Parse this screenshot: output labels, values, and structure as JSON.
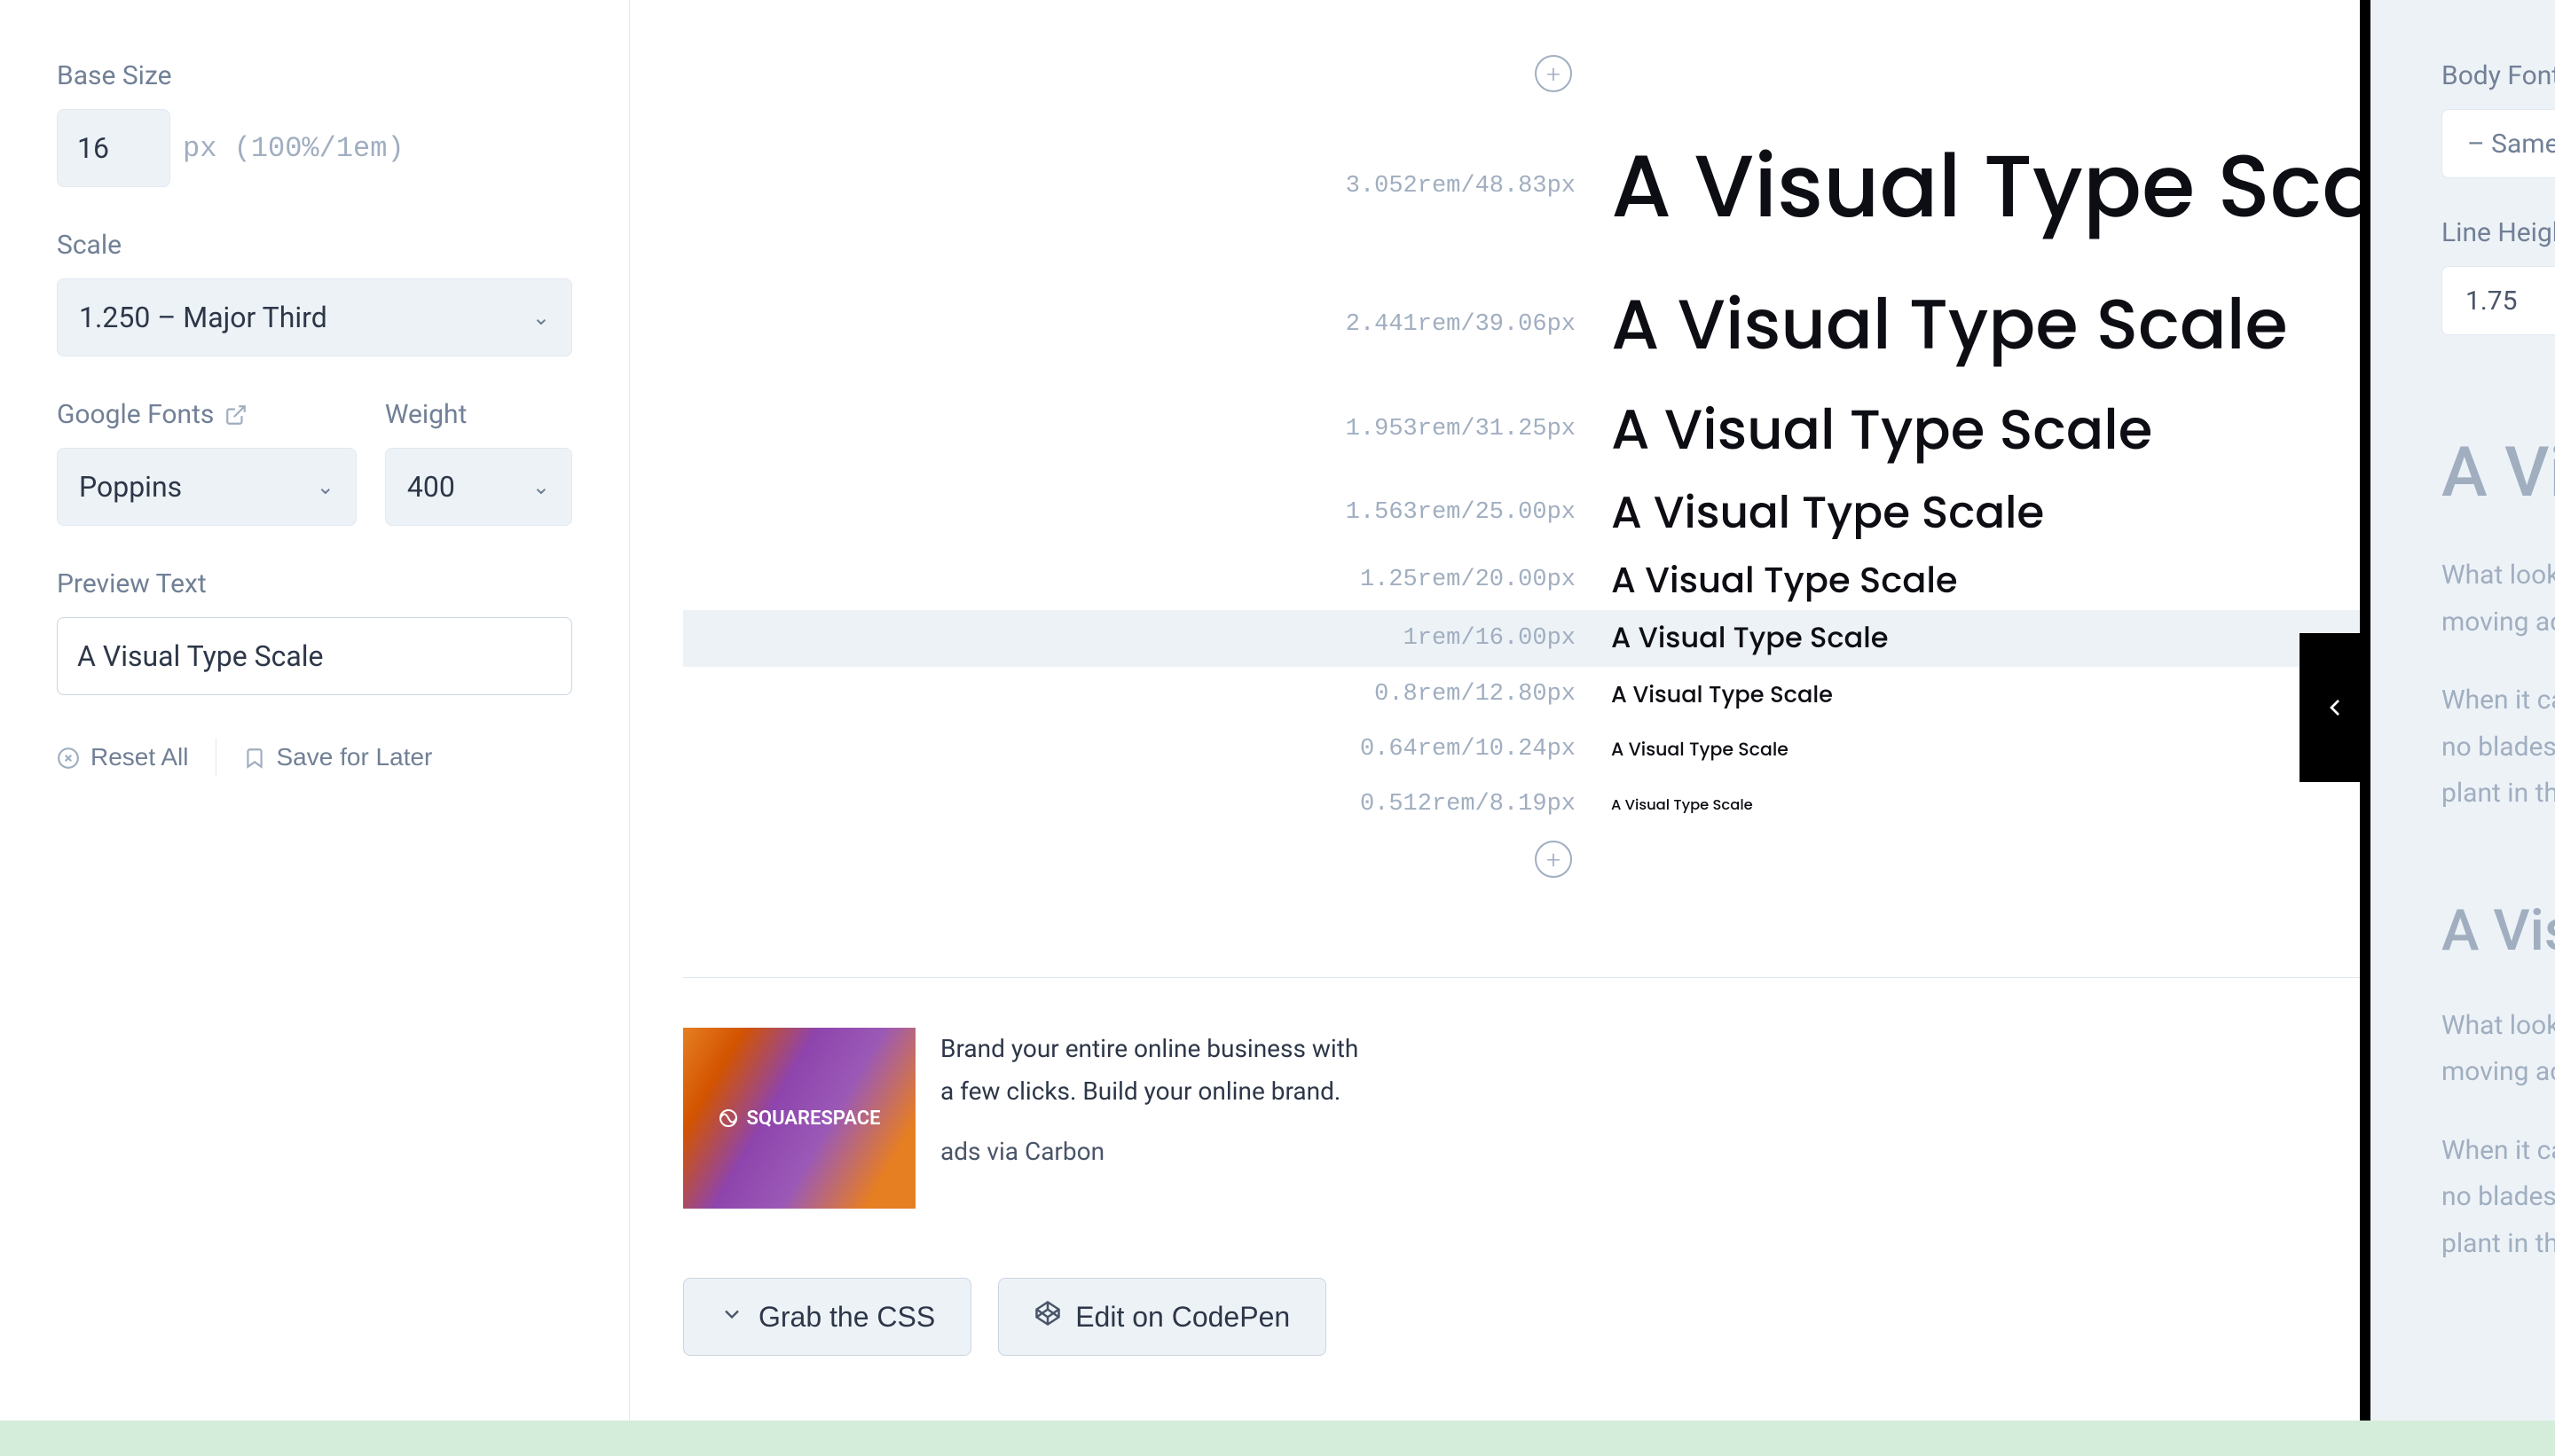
{
  "sidebar": {
    "base_size": {
      "label": "Base Size",
      "value": "16",
      "unit": "px (100%/1em)"
    },
    "scale": {
      "label": "Scale",
      "value": "1.250 – Major Third"
    },
    "google_fonts": {
      "label": "Google Fonts",
      "value": "Poppins"
    },
    "weight": {
      "label": "Weight",
      "value": "400"
    },
    "preview": {
      "label": "Preview Text",
      "value": "A Visual Type Scale"
    },
    "actions": {
      "reset": "Reset All",
      "save": "Save for Later"
    }
  },
  "scale_rows": [
    {
      "meta": "3.052rem/48.83px",
      "text": "A Visual Type Scale",
      "meta_font": 27,
      "px": 97.66,
      "line_h": 180,
      "highlight": false
    },
    {
      "meta": "2.441rem/39.06px",
      "text": "A Visual Type Scale",
      "meta_font": 27,
      "px": 78.12,
      "line_h": 132,
      "highlight": false
    },
    {
      "meta": "1.953rem/31.25px",
      "text": "A Visual Type Scale",
      "meta_font": 27,
      "px": 62.5,
      "line_h": 104,
      "highlight": false
    },
    {
      "meta": "1.563rem/25.00px",
      "text": "A Visual Type Scale",
      "meta_font": 27,
      "px": 50,
      "line_h": 84,
      "highlight": false
    },
    {
      "meta": "1.25rem/20.00px",
      "text": "A Visual Type Scale",
      "meta_font": 27,
      "px": 40,
      "line_h": 68,
      "highlight": false
    },
    {
      "meta": "1rem/16.00px",
      "text": "A Visual Type Scale",
      "meta_font": 27,
      "px": 32,
      "line_h": 64,
      "highlight": true
    },
    {
      "meta": "0.8rem/12.80px",
      "text": "A Visual Type Scale",
      "meta_font": 27,
      "px": 25.6,
      "line_h": 62,
      "highlight": false
    },
    {
      "meta": "0.64rem/10.24px",
      "text": "A Visual Type Scale",
      "meta_font": 27,
      "px": 20.48,
      "line_h": 62,
      "highlight": false
    },
    {
      "meta": "0.512rem/8.19px",
      "text": "A Visual Type Scale",
      "meta_font": 27,
      "px": 16.38,
      "line_h": 62,
      "highlight": false
    }
  ],
  "ad": {
    "logo_text": "SQUARESPACE",
    "copy": "Brand your entire online business with a few clicks. Build your online brand.",
    "via": "ads via Carbon"
  },
  "buttons": {
    "grab": "Grab the CSS",
    "codepen": "Edit on CodePen"
  },
  "right_panel": {
    "body_font_label": "Body Font",
    "body_font_value": "– Same a",
    "line_height_label": "Line Height",
    "line_height_value": "1.75",
    "h1": "A Vi",
    "p1a": "What looke",
    "p1b": "moving ac",
    "p2a": "When it ca",
    "p2b": "no blades,",
    "p2c": "plant in the",
    "h2": "A Vis",
    "p3a": "What looke",
    "p3b": "moving ac",
    "p4a": "When it ca",
    "p4b": "no blades,",
    "p4c": "plant in the"
  },
  "colors": {
    "label": "#718096",
    "muted_mono": "#a0aec0",
    "input_bg": "#edf2f7",
    "border": "#e2e8f0",
    "text_dark": "#0d0d14",
    "panel_bg": "#edf2f7",
    "panel_border": "#000000",
    "footer": "#d4edda"
  }
}
